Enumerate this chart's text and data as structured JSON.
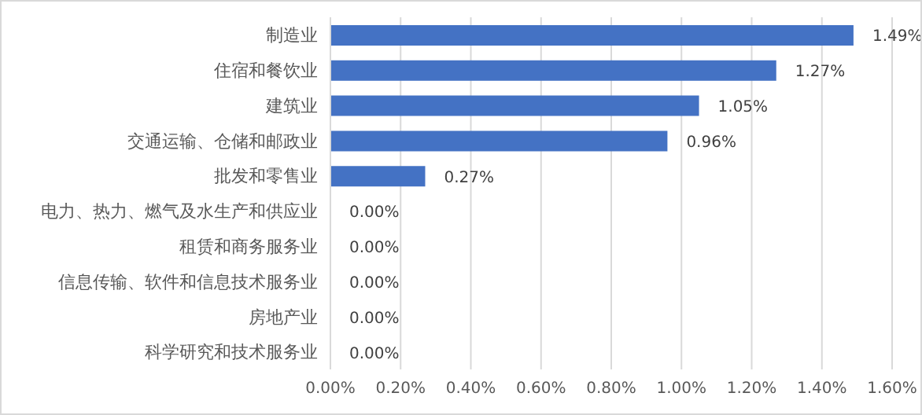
{
  "chart_data": {
    "type": "bar",
    "orientation": "horizontal",
    "categories": [
      "制造业",
      "住宿和餐饮业",
      "建筑业",
      "交通运输、仓储和邮政业",
      "批发和零售业",
      "电力、热力、燃气及水生产和供应业",
      "租赁和商务服务业",
      "信息传输、软件和信息技术服务业",
      "房地产业",
      "科学研究和技术服务业"
    ],
    "values": [
      1.49,
      1.27,
      1.05,
      0.96,
      0.27,
      0,
      0,
      0,
      0,
      0
    ],
    "value_labels": [
      "1.49%",
      "1.27%",
      "1.05%",
      "0.96%",
      "0.27%",
      "0.00%",
      "0.00%",
      "0.00%",
      "0.00%",
      "0.00%"
    ],
    "color": "#4472c4",
    "xlim": [
      0,
      1.6
    ],
    "xticks": [
      {
        "value": 0,
        "label": "0.00%"
      },
      {
        "value": 0.2,
        "label": "0.20%"
      },
      {
        "value": 0.4,
        "label": "0.40%"
      },
      {
        "value": 0.6,
        "label": "0.60%"
      },
      {
        "value": 0.8,
        "label": "0.80%"
      },
      {
        "value": 1.0,
        "label": "1.00%"
      },
      {
        "value": 1.2,
        "label": "1.20%"
      },
      {
        "value": 1.4,
        "label": "1.40%"
      },
      {
        "value": 1.6,
        "label": "1.60%"
      }
    ],
    "grid": "x"
  }
}
